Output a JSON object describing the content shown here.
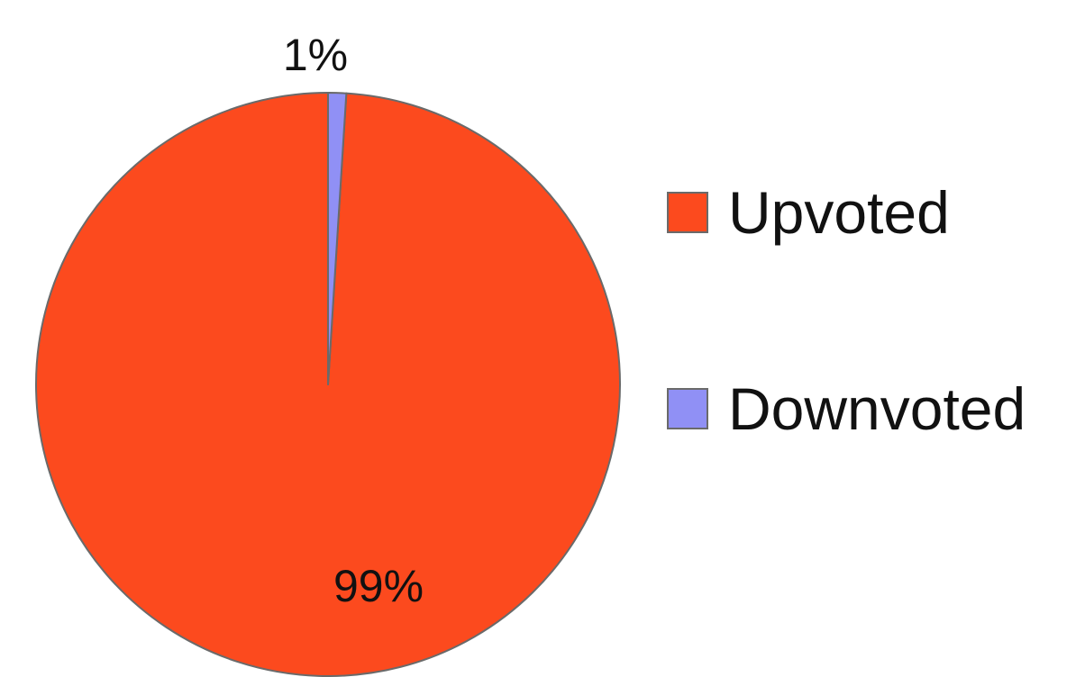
{
  "chart_data": {
    "type": "pie",
    "title": "",
    "categories": [
      "Upvoted",
      "Downvoted"
    ],
    "values": [
      99,
      1
    ],
    "value_labels": [
      "99%",
      "1%"
    ],
    "colors": [
      "#fc4a1e",
      "#9090f5"
    ],
    "legend_position": "right",
    "start_angle": "top, clockwise"
  },
  "legend": {
    "items": [
      {
        "label": "Upvoted",
        "color": "#fc4a1e"
      },
      {
        "label": "Downvoted",
        "color": "#9090f5"
      }
    ]
  }
}
